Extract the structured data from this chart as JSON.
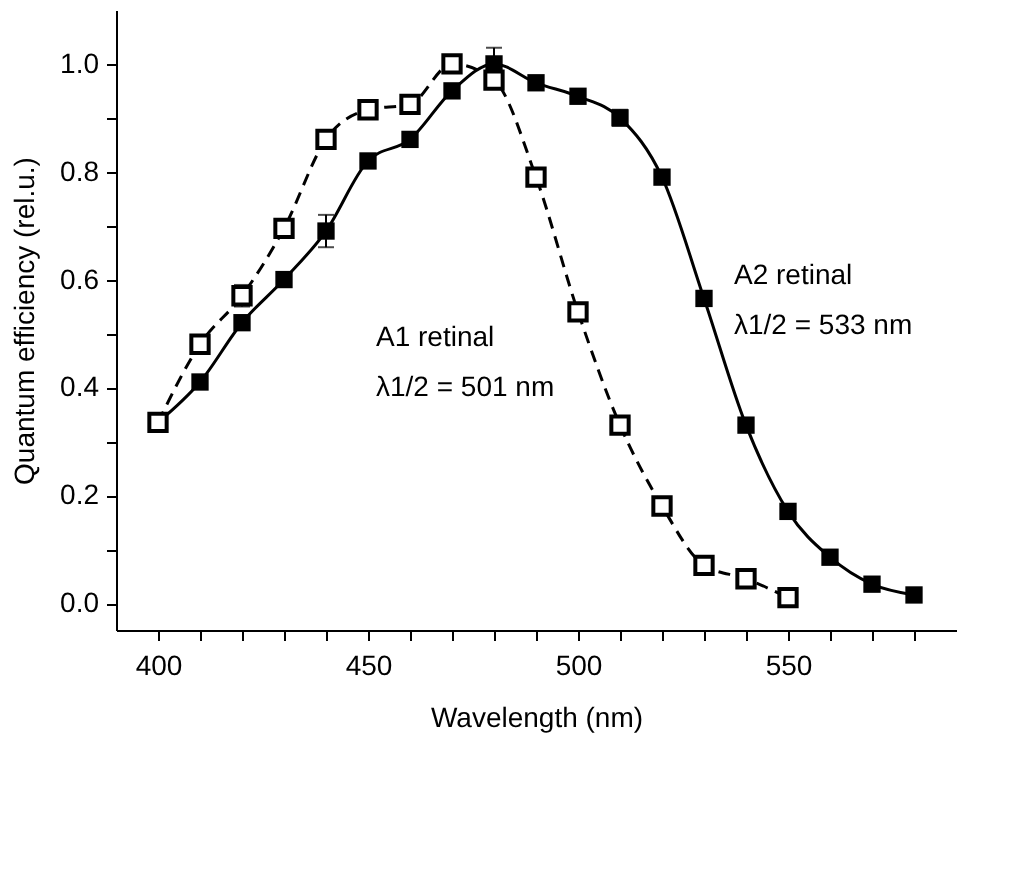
{
  "chart_data": {
    "type": "line",
    "xlabel": "Wavelength (nm)",
    "ylabel": "Quantum efficiency (rel.u.)",
    "xlim": [
      390,
      590
    ],
    "ylim": [
      -0.05,
      1.1
    ],
    "xticks": [
      400,
      {
        "value": 410,
        "label": null
      },
      {
        "value": 420,
        "label": null
      },
      {
        "value": 430,
        "label": null
      },
      {
        "value": 440,
        "label": null
      },
      450,
      {
        "value": 460,
        "label": null
      },
      {
        "value": 470,
        "label": null
      },
      {
        "value": 480,
        "label": null
      },
      {
        "value": 490,
        "label": null
      },
      500,
      {
        "value": 510,
        "label": null
      },
      {
        "value": 520,
        "label": null
      },
      {
        "value": 530,
        "label": null
      },
      {
        "value": 540,
        "label": null
      },
      550,
      {
        "value": 560,
        "label": null
      },
      {
        "value": 570,
        "label": null
      },
      {
        "value": 580,
        "label": null
      }
    ],
    "yticks": [
      {
        "value": 0,
        "label": "0.0"
      },
      {
        "value": 0.1,
        "label": null
      },
      {
        "value": 0.2,
        "label": "0.2"
      },
      {
        "value": 0.3,
        "label": null
      },
      {
        "value": 0.4,
        "label": "0.4"
      },
      {
        "value": 0.5,
        "label": null
      },
      {
        "value": 0.6,
        "label": "0.6"
      },
      {
        "value": 0.7,
        "label": null
      },
      {
        "value": 0.8,
        "label": "0.8"
      },
      {
        "value": 0.9,
        "label": null
      },
      {
        "value": 1.0,
        "label": "1.0"
      }
    ],
    "grid": false,
    "marker": "square",
    "series": [
      {
        "color": "#000000",
        "line_style": "solid",
        "x": [
          400,
          410,
          420,
          430,
          440,
          450,
          460,
          470,
          480,
          490,
          500,
          510,
          520,
          530,
          540,
          550,
          560,
          570,
          580
        ],
        "values": [
          0.335,
          0.41,
          0.52,
          0.6,
          0.69,
          0.82,
          0.86,
          0.95,
          1.0,
          0.965,
          0.94,
          0.9,
          0.79,
          0.565,
          0.33,
          0.17,
          0.085,
          0.035,
          0.015
        ],
        "errors": [
          null,
          null,
          null,
          null,
          0.03,
          null,
          null,
          null,
          0.03,
          null,
          null,
          0.015,
          null,
          null,
          null,
          null,
          null,
          null,
          null
        ]
      },
      {
        "color": "#000000",
        "line_style": "dashed",
        "x": [
          400,
          410,
          420,
          430,
          440,
          450,
          460,
          470,
          480,
          490,
          500,
          510,
          520,
          530,
          540,
          550
        ],
        "values": [
          0.335,
          0.48,
          0.57,
          0.695,
          0.86,
          0.915,
          0.925,
          1.0,
          0.97,
          0.79,
          0.54,
          0.33,
          0.18,
          0.07,
          0.045,
          0.01
        ],
        "errors": [
          null,
          null,
          0.02,
          null,
          0.015,
          0.015,
          null,
          null,
          null,
          0.015,
          null,
          null,
          null,
          null,
          null,
          null
        ]
      }
    ],
    "annotations": [
      "A1 retinal",
      "λ1/2 = 501 nm",
      "A2 retinal",
      "λ1/2 = 533 nm"
    ]
  }
}
